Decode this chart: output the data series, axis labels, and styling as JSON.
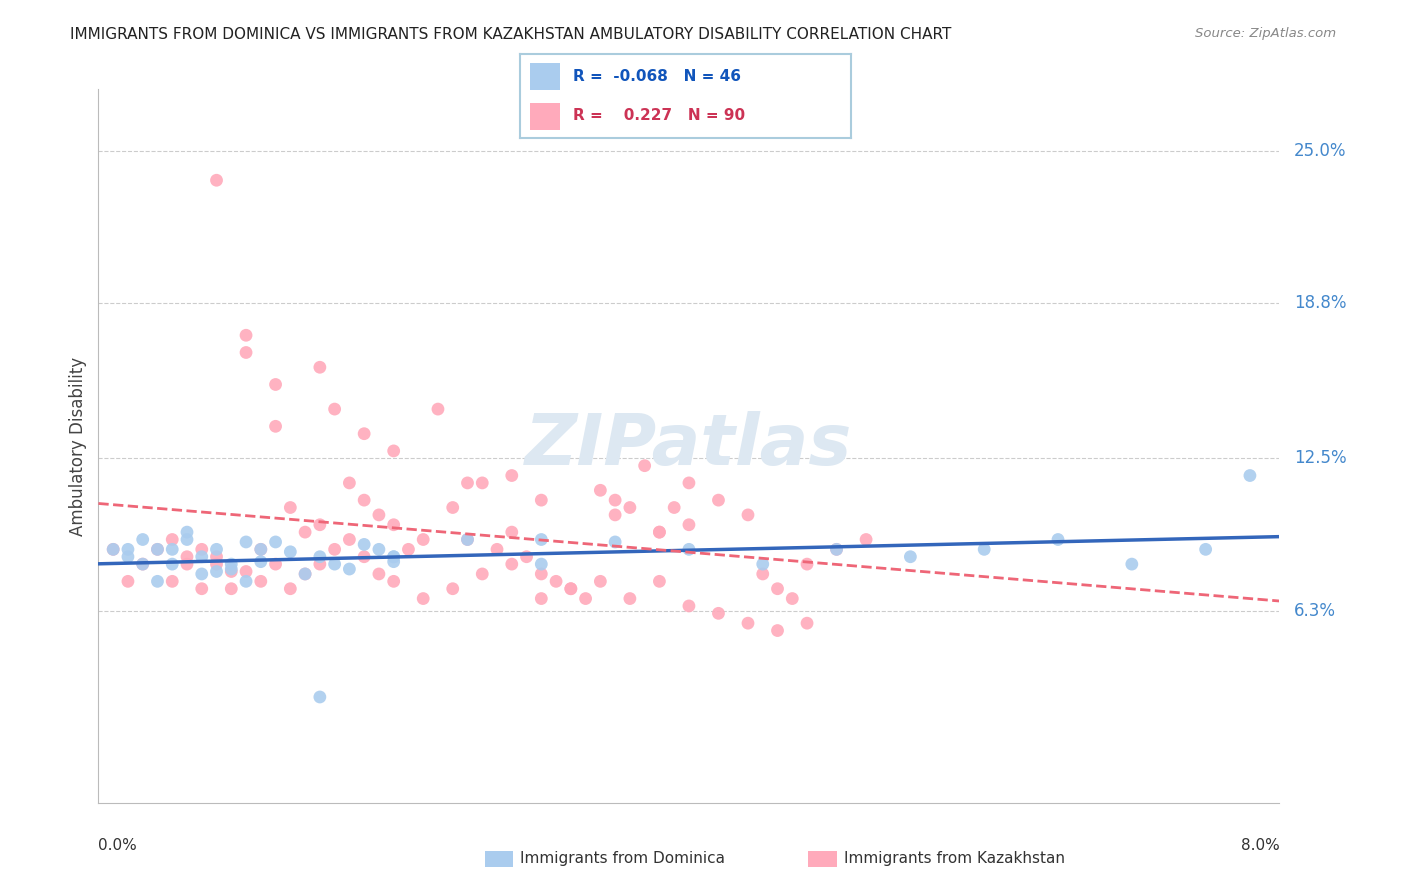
{
  "title": "IMMIGRANTS FROM DOMINICA VS IMMIGRANTS FROM KAZAKHSTAN AMBULATORY DISABILITY CORRELATION CHART",
  "source": "Source: ZipAtlas.com",
  "ylabel": "Ambulatory Disability",
  "y_ticks": [
    0.063,
    0.125,
    0.188,
    0.25
  ],
  "y_tick_labels": [
    "6.3%",
    "12.5%",
    "18.8%",
    "25.0%"
  ],
  "x_min": 0.0,
  "x_max": 0.08,
  "y_min": -0.015,
  "y_max": 0.275,
  "color_dominica": "#AACCEE",
  "color_kazakhstan": "#FFAABB",
  "trend_color_dominica": "#3366BB",
  "trend_color_kazakhstan": "#EE6677",
  "legend_label1": "Immigrants from Dominica",
  "legend_label2": "Immigrants from Kazakhstan",
  "watermark": "ZIPatlas",
  "dominica_x": [
    0.001,
    0.002,
    0.003,
    0.004,
    0.005,
    0.006,
    0.007,
    0.008,
    0.009,
    0.01,
    0.011,
    0.012,
    0.013,
    0.014,
    0.015,
    0.016,
    0.017,
    0.018,
    0.019,
    0.02,
    0.002,
    0.003,
    0.004,
    0.005,
    0.006,
    0.007,
    0.008,
    0.009,
    0.01,
    0.011,
    0.02,
    0.025,
    0.03,
    0.035,
    0.04,
    0.045,
    0.05,
    0.055,
    0.06,
    0.065,
    0.07,
    0.075,
    0.078,
    0.015,
    0.02,
    0.03
  ],
  "dominica_y": [
    0.088,
    0.085,
    0.092,
    0.088,
    0.082,
    0.095,
    0.078,
    0.088,
    0.08,
    0.075,
    0.083,
    0.091,
    0.087,
    0.078,
    0.085,
    0.082,
    0.08,
    0.09,
    0.088,
    0.083,
    0.088,
    0.082,
    0.075,
    0.088,
    0.092,
    0.085,
    0.079,
    0.082,
    0.091,
    0.088,
    0.085,
    0.092,
    0.082,
    0.091,
    0.088,
    0.082,
    0.088,
    0.085,
    0.088,
    0.092,
    0.082,
    0.088,
    0.118,
    0.028,
    0.085,
    0.092
  ],
  "kazakhstan_x": [
    0.001,
    0.002,
    0.003,
    0.004,
    0.005,
    0.006,
    0.007,
    0.008,
    0.009,
    0.01,
    0.011,
    0.012,
    0.013,
    0.014,
    0.015,
    0.016,
    0.017,
    0.018,
    0.019,
    0.02,
    0.021,
    0.022,
    0.023,
    0.024,
    0.025,
    0.026,
    0.027,
    0.028,
    0.029,
    0.03,
    0.031,
    0.032,
    0.033,
    0.034,
    0.035,
    0.036,
    0.037,
    0.038,
    0.039,
    0.04,
    0.008,
    0.01,
    0.012,
    0.015,
    0.018,
    0.02,
    0.025,
    0.028,
    0.03,
    0.035,
    0.038,
    0.04,
    0.042,
    0.044,
    0.045,
    0.046,
    0.047,
    0.048,
    0.05,
    0.052,
    0.005,
    0.006,
    0.007,
    0.008,
    0.009,
    0.01,
    0.011,
    0.012,
    0.013,
    0.014,
    0.015,
    0.016,
    0.017,
    0.018,
    0.019,
    0.02,
    0.022,
    0.024,
    0.026,
    0.028,
    0.03,
    0.032,
    0.034,
    0.036,
    0.038,
    0.04,
    0.042,
    0.044,
    0.046,
    0.048
  ],
  "kazakhstan_y": [
    0.088,
    0.075,
    0.082,
    0.088,
    0.092,
    0.085,
    0.072,
    0.082,
    0.079,
    0.168,
    0.088,
    0.138,
    0.105,
    0.095,
    0.098,
    0.145,
    0.115,
    0.108,
    0.102,
    0.098,
    0.088,
    0.092,
    0.145,
    0.105,
    0.092,
    0.115,
    0.088,
    0.095,
    0.085,
    0.078,
    0.075,
    0.072,
    0.068,
    0.112,
    0.108,
    0.105,
    0.122,
    0.095,
    0.105,
    0.098,
    0.238,
    0.175,
    0.155,
    0.162,
    0.135,
    0.128,
    0.115,
    0.118,
    0.108,
    0.102,
    0.095,
    0.115,
    0.108,
    0.102,
    0.078,
    0.072,
    0.068,
    0.082,
    0.088,
    0.092,
    0.075,
    0.082,
    0.088,
    0.085,
    0.072,
    0.079,
    0.075,
    0.082,
    0.072,
    0.078,
    0.082,
    0.088,
    0.092,
    0.085,
    0.078,
    0.075,
    0.068,
    0.072,
    0.078,
    0.082,
    0.068,
    0.072,
    0.075,
    0.068,
    0.075,
    0.065,
    0.062,
    0.058,
    0.055,
    0.058
  ]
}
